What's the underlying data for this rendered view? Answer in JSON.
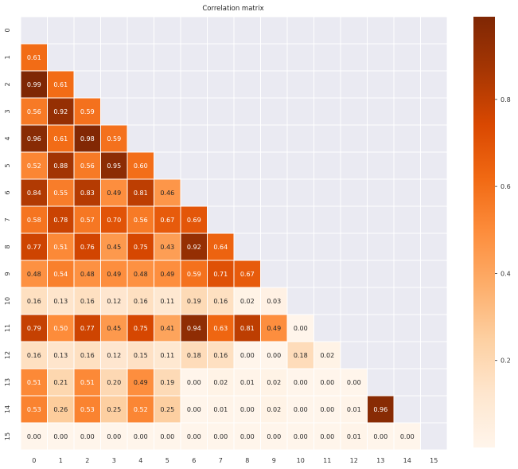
{
  "chart_data": {
    "type": "heatmap",
    "title": "Correlation matrix",
    "mask": "upper-triangle-including-diagonal",
    "row_labels": [
      "0",
      "1",
      "2",
      "3",
      "4",
      "5",
      "6",
      "7",
      "8",
      "9",
      "10",
      "11",
      "12",
      "13",
      "14",
      "15"
    ],
    "col_labels": [
      "0",
      "1",
      "2",
      "3",
      "4",
      "5",
      "6",
      "7",
      "8",
      "9",
      "10",
      "11",
      "12",
      "13",
      "14",
      "15"
    ],
    "rows": [
      [],
      [
        "0.61"
      ],
      [
        "0.99",
        "0.61"
      ],
      [
        "0.56",
        "0.92",
        "0.59"
      ],
      [
        "0.96",
        "0.61",
        "0.98",
        "0.59"
      ],
      [
        "0.52",
        "0.88",
        "0.56",
        "0.95",
        "0.60"
      ],
      [
        "0.84",
        "0.55",
        "0.83",
        "0.49",
        "0.81",
        "0.46"
      ],
      [
        "0.58",
        "0.78",
        "0.57",
        "0.70",
        "0.56",
        "0.67",
        "0.69"
      ],
      [
        "0.77",
        "0.51",
        "0.76",
        "0.45",
        "0.75",
        "0.43",
        "0.92",
        "0.64"
      ],
      [
        "0.48",
        "0.54",
        "0.48",
        "0.49",
        "0.48",
        "0.49",
        "0.59",
        "0.71",
        "0.67"
      ],
      [
        "0.16",
        "0.13",
        "0.16",
        "0.12",
        "0.16",
        "0.11",
        "0.19",
        "0.16",
        "0.02",
        "0.03"
      ],
      [
        "0.79",
        "0.50",
        "0.77",
        "0.45",
        "0.75",
        "0.41",
        "0.94",
        "0.63",
        "0.81",
        "0.49",
        "0.00"
      ],
      [
        "0.16",
        "0.13",
        "0.16",
        "0.12",
        "0.15",
        "0.11",
        "0.18",
        "0.16",
        "0.00",
        "0.00",
        "0.18",
        "0.02"
      ],
      [
        "0.51",
        "0.21",
        "0.51",
        "0.20",
        "0.49",
        "0.19",
        "0.00",
        "0.02",
        "0.01",
        "0.02",
        "0.00",
        "0.00",
        "0.00"
      ],
      [
        "0.53",
        "0.26",
        "0.53",
        "0.25",
        "0.52",
        "0.25",
        "0.00",
        "0.01",
        "0.00",
        "0.02",
        "0.00",
        "0.00",
        "0.01",
        "0.96"
      ],
      [
        "0.00",
        "0.00",
        "0.00",
        "0.00",
        "0.00",
        "0.00",
        "0.00",
        "0.00",
        "0.00",
        "0.00",
        "0.00",
        "0.00",
        "0.01",
        "0.00",
        "0.00"
      ]
    ],
    "color_range": [
      0,
      0.99
    ],
    "colormap": "Oranges",
    "colorbar_ticks": [
      "0.2",
      "0.4",
      "0.6",
      "0.8"
    ],
    "colorbar_tick_values": [
      0.2,
      0.4,
      0.6,
      0.8
    ],
    "mask_color": "#eaeaf2",
    "grid_line_color": "#ffffff"
  }
}
